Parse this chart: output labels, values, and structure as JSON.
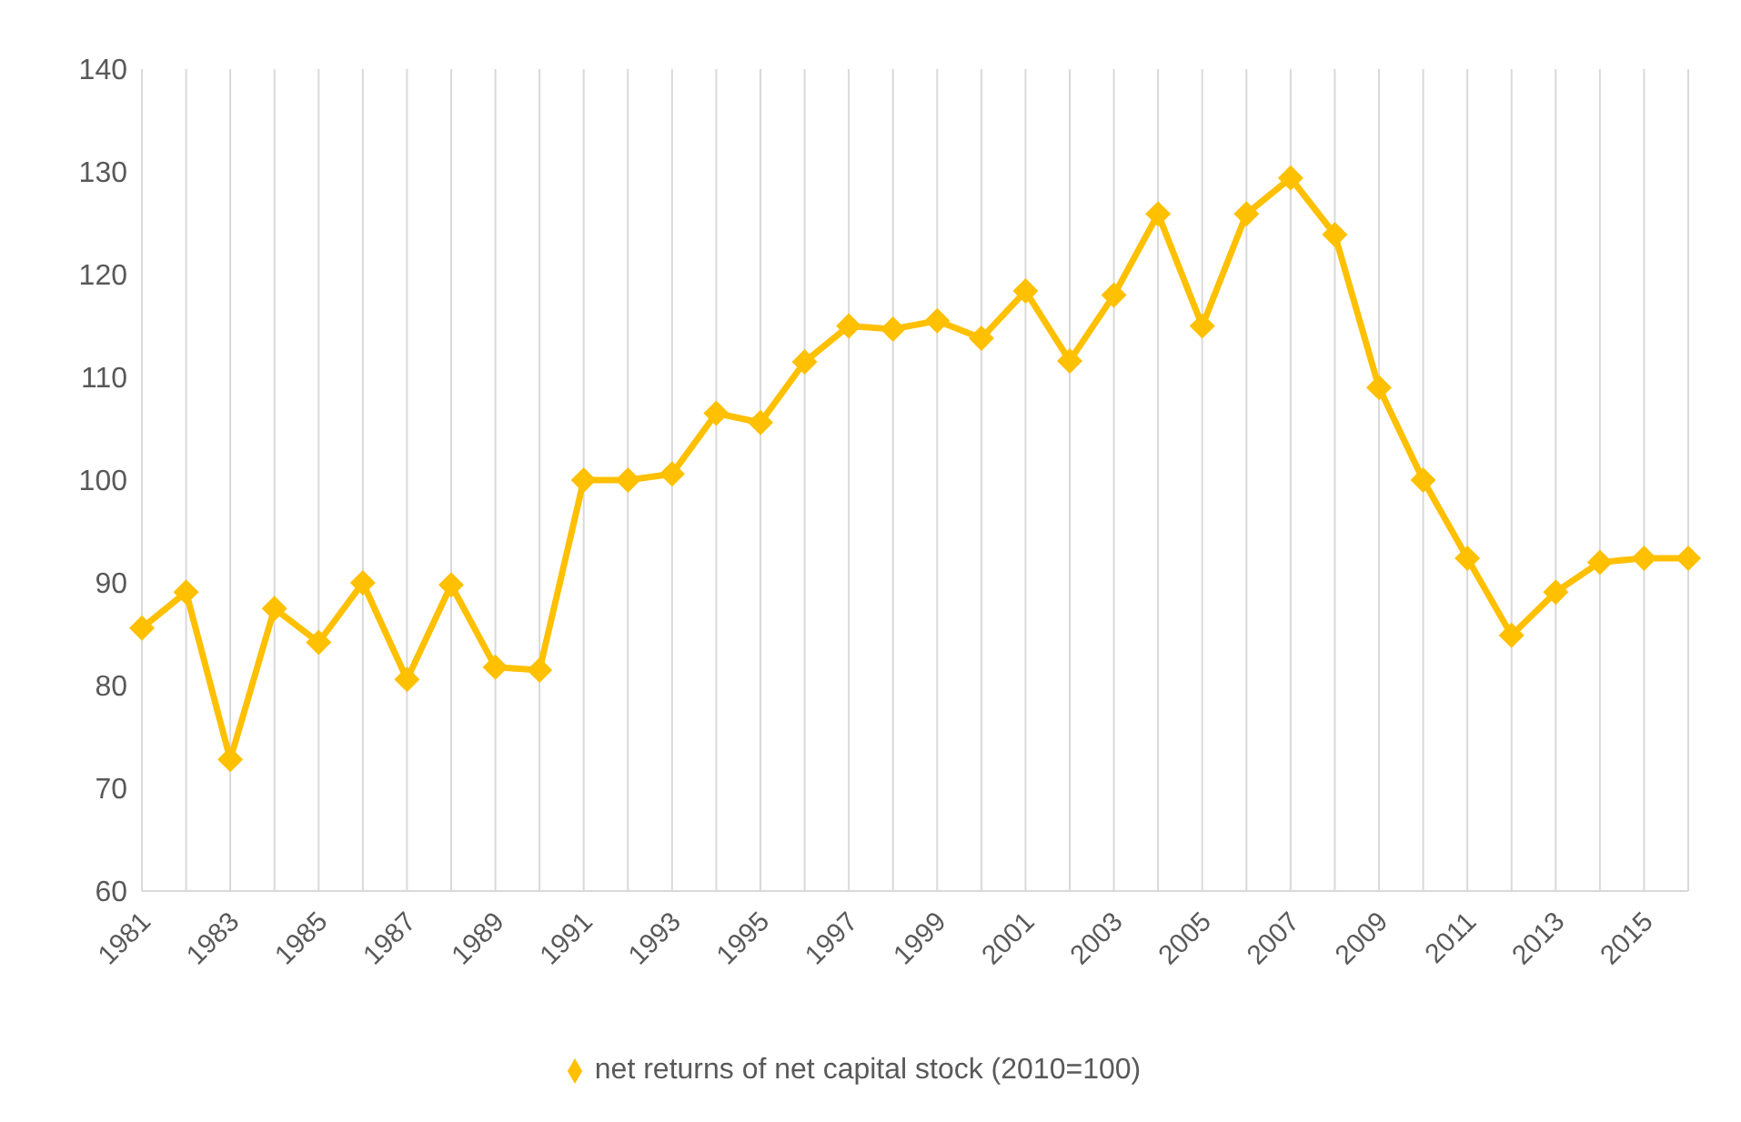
{
  "chart_data": {
    "type": "line",
    "categories": [
      "1981",
      null,
      "1983",
      null,
      "1985",
      null,
      "1987",
      null,
      "1989",
      null,
      "1991",
      null,
      "1993",
      null,
      "1995",
      null,
      "1997",
      null,
      "1999",
      null,
      "2001",
      null,
      "2003",
      null,
      "2005",
      null,
      "2007",
      null,
      "2009",
      null,
      "2011",
      null,
      "2013",
      null,
      "2015",
      null
    ],
    "series": [
      {
        "name": "net returns of net capital stock (2010=100)",
        "color": "#ffc000",
        "values": [
          85.6,
          89.1,
          72.8,
          87.5,
          84.2,
          90,
          80.6,
          89.8,
          81.8,
          81.5,
          100,
          100,
          100.6,
          106.5,
          105.6,
          111.5,
          115,
          114.7,
          115.5,
          113.8,
          118.4,
          111.6,
          118,
          125.9,
          115,
          125.9,
          129.4,
          123.9,
          109,
          100,
          92.4,
          84.9,
          89.1,
          92,
          92.4,
          92.4
        ]
      }
    ],
    "ylim": [
      60,
      140
    ],
    "yticks": [
      60,
      70,
      80,
      90,
      100,
      110,
      120,
      130,
      140
    ],
    "grid": "x",
    "legend": "bottom",
    "marker": "diamond",
    "line_style": "solid"
  }
}
